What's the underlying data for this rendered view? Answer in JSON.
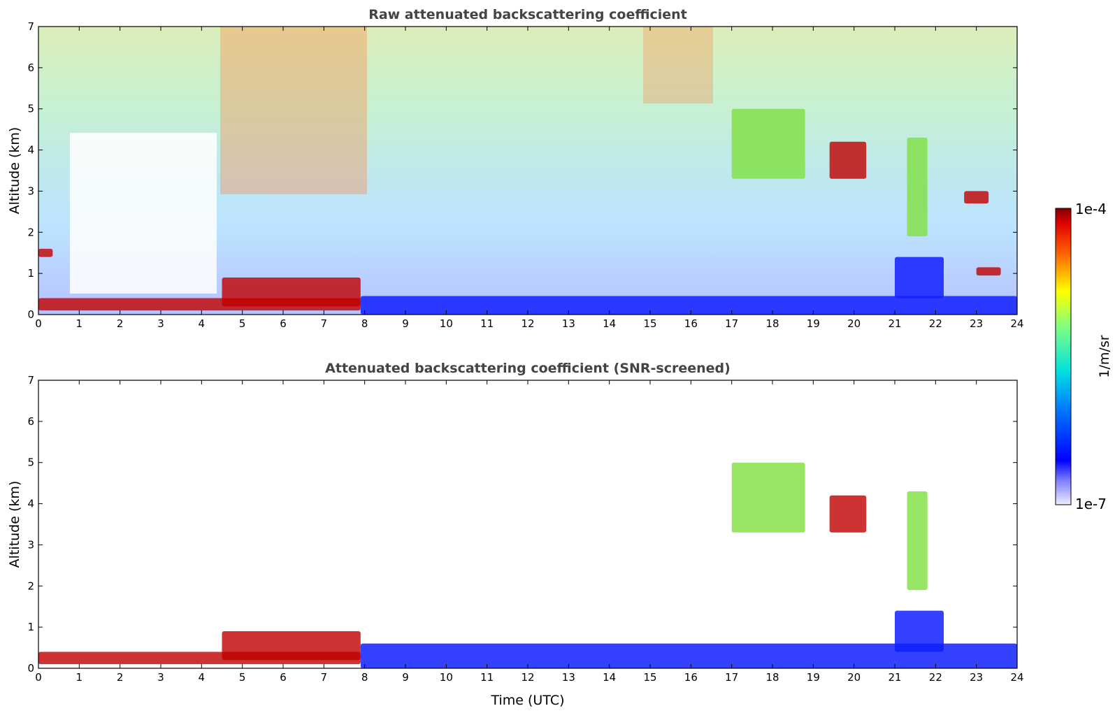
{
  "chart_data": [
    {
      "type": "heatmap",
      "title": "Raw attenuated backscattering coefficient",
      "xlabel": "",
      "ylabel": "Altitude (km)",
      "xlim": [
        0,
        24
      ],
      "ylim": [
        0,
        7
      ],
      "xticks": [
        "0",
        "1",
        "2",
        "3",
        "4",
        "5",
        "6",
        "7",
        "8",
        "9",
        "10",
        "11",
        "12",
        "13",
        "14",
        "15",
        "16",
        "17",
        "18",
        "19",
        "20",
        "21",
        "22",
        "23",
        "24"
      ],
      "yticks": [
        "0",
        "1",
        "2",
        "3",
        "4",
        "5",
        "6",
        "7"
      ],
      "screened": false,
      "features": [
        {
          "x": [
            0,
            7.9
          ],
          "y": [
            0.1,
            0.4
          ],
          "level": "high"
        },
        {
          "x": [
            4.5,
            7.9
          ],
          "y": [
            0.2,
            0.9
          ],
          "level": "high"
        },
        {
          "x": [
            0,
            0.35
          ],
          "y": [
            1.4,
            1.6
          ],
          "level": "high"
        },
        {
          "x": [
            7.9,
            24
          ],
          "y": [
            0,
            0.45
          ],
          "level": "low"
        },
        {
          "x": [
            21,
            22.2
          ],
          "y": [
            0.4,
            1.4
          ],
          "level": "low"
        },
        {
          "x": [
            19.4,
            20.3
          ],
          "y": [
            3.3,
            4.2
          ],
          "level": "high"
        },
        {
          "x": [
            21.3,
            21.8
          ],
          "y": [
            1.9,
            4.3
          ],
          "level": "mid"
        },
        {
          "x": [
            22.7,
            23.3
          ],
          "y": [
            2.7,
            3.0
          ],
          "level": "high"
        },
        {
          "x": [
            23.0,
            23.6
          ],
          "y": [
            0.95,
            1.15
          ],
          "level": "high"
        },
        {
          "x": [
            17.0,
            18.8
          ],
          "y": [
            3.3,
            5.0
          ],
          "level": "mid"
        }
      ]
    },
    {
      "type": "heatmap",
      "title": "Attenuated backscattering coefficient (SNR-screened)",
      "xlabel": "Time (UTC)",
      "ylabel": "Altitude (km)",
      "xlim": [
        0,
        24
      ],
      "ylim": [
        0,
        7
      ],
      "xticks": [
        "0",
        "1",
        "2",
        "3",
        "4",
        "5",
        "6",
        "7",
        "8",
        "9",
        "10",
        "11",
        "12",
        "13",
        "14",
        "15",
        "16",
        "17",
        "18",
        "19",
        "20",
        "21",
        "22",
        "23",
        "24"
      ],
      "yticks": [
        "0",
        "1",
        "2",
        "3",
        "4",
        "5",
        "6",
        "7"
      ],
      "screened": true,
      "features": [
        {
          "x": [
            0,
            7.9
          ],
          "y": [
            0.1,
            0.4
          ],
          "level": "high"
        },
        {
          "x": [
            4.5,
            7.9
          ],
          "y": [
            0.2,
            0.9
          ],
          "level": "high"
        },
        {
          "x": [
            7.9,
            24
          ],
          "y": [
            0,
            0.6
          ],
          "level": "low"
        },
        {
          "x": [
            21,
            22.2
          ],
          "y": [
            0.4,
            1.4
          ],
          "level": "low"
        },
        {
          "x": [
            19.4,
            20.3
          ],
          "y": [
            3.3,
            4.2
          ],
          "level": "high"
        },
        {
          "x": [
            21.3,
            21.8
          ],
          "y": [
            1.9,
            4.3
          ],
          "level": "mid"
        },
        {
          "x": [
            17.0,
            18.8
          ],
          "y": [
            3.3,
            5.0
          ],
          "level": "mid"
        }
      ]
    }
  ],
  "colorbar": {
    "label": "1/m/sr",
    "max_label": "1e-4",
    "min_label": "1e-7",
    "colormap": "jet"
  }
}
